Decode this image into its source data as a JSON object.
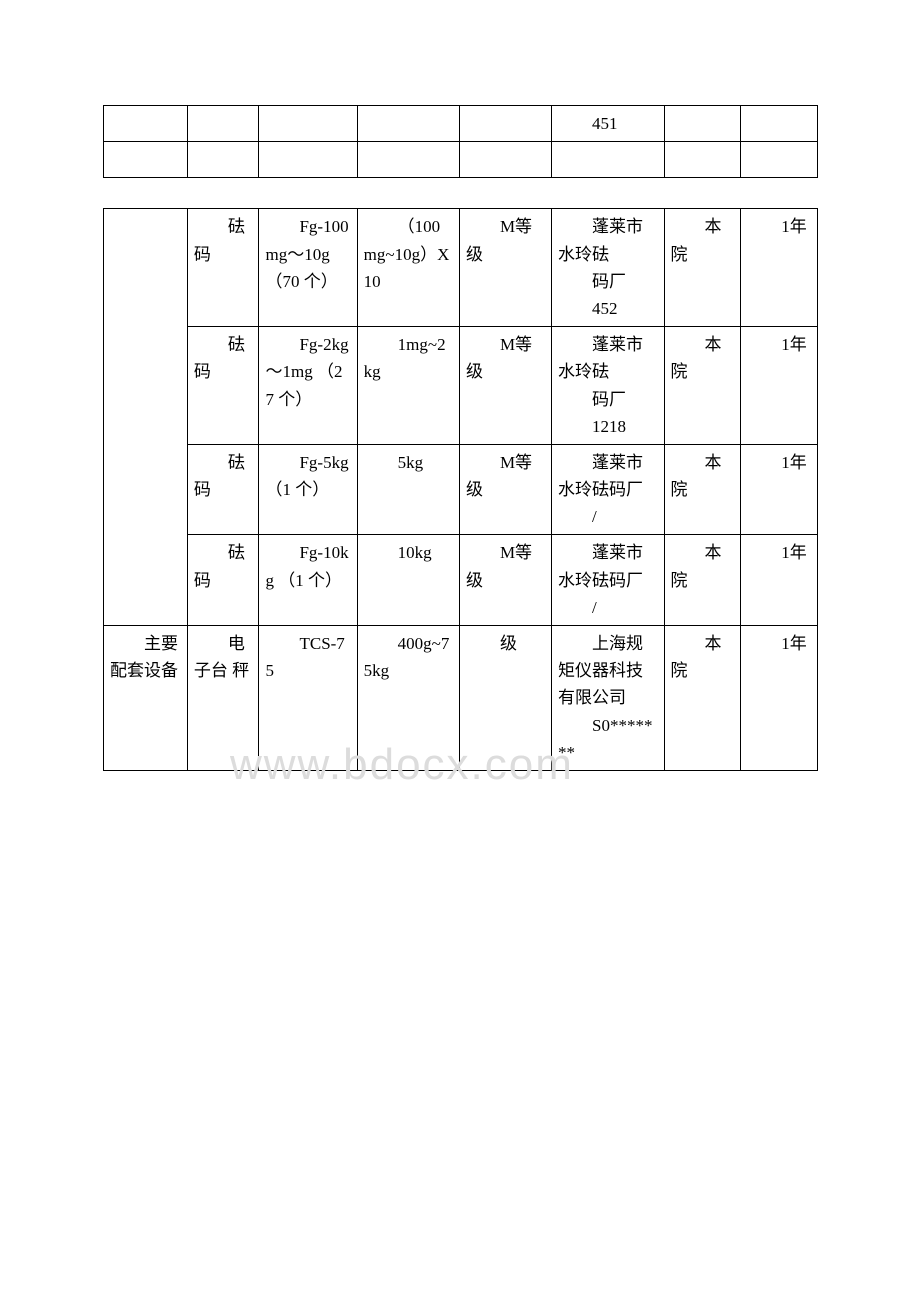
{
  "watermark": "www.bdocx.com",
  "top_table": {
    "row1": {
      "c6": "451"
    }
  },
  "main_table": {
    "rows": [
      {
        "c2": "砝码",
        "c3": "Fg-100mg～10g\n（70 个）",
        "c4": "（100mg~10g）X 10",
        "c5": "M等级",
        "c6a": "蓬莱市水玲砝",
        "c6b": "码厂",
        "c6c": "452",
        "c7": "本院",
        "c8": "1年"
      },
      {
        "c2": "砝码",
        "c3": "Fg-2kg～1mg\n（27 个）",
        "c4": "1mg~2kg",
        "c5": "M等级",
        "c6a": "蓬莱市水玲砝",
        "c6b": "码厂",
        "c6c": "1218",
        "c7": "本院",
        "c8": "1年"
      },
      {
        "c2": "砝码",
        "c3": "Fg-5kg\n（1 个）",
        "c4": "5kg",
        "c5": "M等级",
        "c6a": "蓬莱市水玲砝码厂",
        "c6b": "/",
        "c7": "本院",
        "c8": "1年"
      },
      {
        "c2": "砝码",
        "c3": "Fg-10kg\n（1 个）",
        "c4": "10kg",
        "c5": "M等级",
        "c6a": "蓬莱市水玲砝码厂",
        "c6b": "/",
        "c7": "本院",
        "c8": "1年"
      },
      {
        "c1": "主要配套设备",
        "c2": "电子台\n秤",
        "c3": "TCS-75",
        "c4": "400g~75kg",
        "c5": "级",
        "c6a": "上海规矩仪器科技有限公司",
        "c6b": "S0*******",
        "c7": "本院",
        "c8": "1年"
      }
    ]
  }
}
